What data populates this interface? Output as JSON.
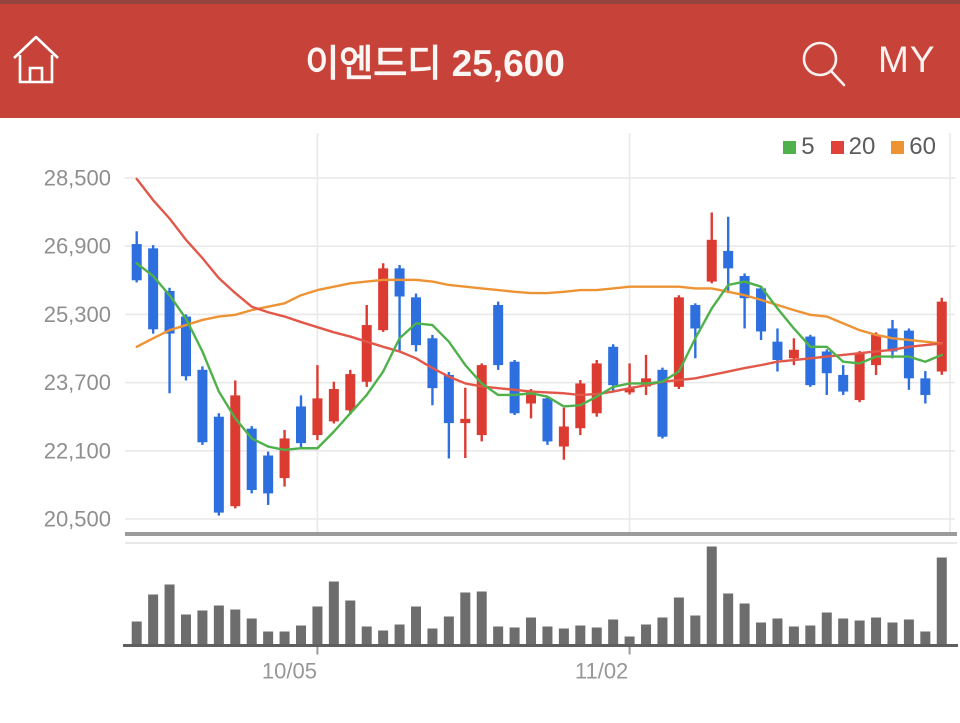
{
  "header": {
    "title": "이엔드디 25,600",
    "stock_name": "이엔드디",
    "current_price": "25,600",
    "my_label": "MY",
    "background": "#c7433a"
  },
  "legend": [
    {
      "label": "5",
      "color": "#4fb14a",
      "series": "ma5"
    },
    {
      "label": "20",
      "color": "#e0413a",
      "series": "ma20"
    },
    {
      "label": "60",
      "color": "#ed9334",
      "series": "ma60"
    }
  ],
  "chart_data": {
    "type": "candlestick+volume",
    "title": "이엔드디",
    "ylabel": "",
    "xlabel": "",
    "grid": true,
    "legend_position": "top-right",
    "ylim": [
      20100,
      28900
    ],
    "y_ticks": [
      {
        "label": "28,500",
        "value": 28500
      },
      {
        "label": "26,900",
        "value": 26900
      },
      {
        "label": "25,300",
        "value": 25300
      },
      {
        "label": "23,700",
        "value": 23700
      },
      {
        "label": "22,100",
        "value": 22100
      },
      {
        "label": "20,500",
        "value": 20500
      }
    ],
    "x_gridlines": [
      {
        "label": "10/05",
        "candle_index": 11
      },
      {
        "label": "11/02",
        "candle_index": 30
      },
      {
        "label": "",
        "candle_index": 49.5
      }
    ],
    "candles_format": [
      "open",
      "high",
      "low",
      "close",
      "volume_rel"
    ],
    "candles": [
      [
        26950,
        27250,
        26050,
        26100,
        24
      ],
      [
        26850,
        26925,
        24850,
        24950,
        51
      ],
      [
        25850,
        25925,
        23450,
        24850,
        61
      ],
      [
        25250,
        25300,
        23750,
        23850,
        31
      ],
      [
        24000,
        24080,
        22240,
        22300,
        35
      ],
      [
        22900,
        22980,
        20580,
        20650,
        40
      ],
      [
        20800,
        23750,
        20750,
        23400,
        36
      ],
      [
        22620,
        22680,
        21100,
        21180,
        27
      ],
      [
        21990,
        22080,
        20830,
        21100,
        14
      ],
      [
        21460,
        22590,
        21260,
        22390,
        14
      ],
      [
        23140,
        23400,
        22160,
        22280,
        20
      ],
      [
        22470,
        24110,
        22350,
        23330,
        39
      ],
      [
        22790,
        23720,
        22740,
        23550,
        64
      ],
      [
        23050,
        24000,
        22950,
        23900,
        45
      ],
      [
        23720,
        25520,
        23600,
        25050,
        19
      ],
      [
        24930,
        26500,
        24890,
        26380,
        15
      ],
      [
        26380,
        26460,
        24430,
        25720,
        21
      ],
      [
        25700,
        25790,
        24430,
        24580,
        39
      ],
      [
        24740,
        24820,
        23170,
        23570,
        17
      ],
      [
        23880,
        23950,
        21920,
        22750,
        29
      ],
      [
        22750,
        23580,
        21930,
        22850,
        53
      ],
      [
        22470,
        24150,
        22320,
        24110,
        54
      ],
      [
        25520,
        25600,
        24000,
        24110,
        19
      ],
      [
        24190,
        24230,
        22940,
        22980,
        18
      ],
      [
        23210,
        23550,
        22860,
        23490,
        28
      ],
      [
        23330,
        23390,
        22240,
        22320,
        19
      ],
      [
        22200,
        23110,
        21890,
        22670,
        17
      ],
      [
        22630,
        23760,
        22470,
        23680,
        20
      ],
      [
        22980,
        24230,
        22900,
        24150,
        18
      ],
      [
        24540,
        24600,
        23490,
        23640,
        26
      ],
      [
        23470,
        24150,
        23420,
        23560,
        9
      ],
      [
        23610,
        24350,
        23410,
        23800,
        21
      ],
      [
        24000,
        24050,
        22390,
        22430,
        28
      ],
      [
        23600,
        25750,
        23550,
        25700,
        48
      ],
      [
        25520,
        25560,
        24270,
        24970,
        30
      ],
      [
        26070,
        27690,
        26030,
        27050,
        99
      ],
      [
        26790,
        27590,
        25800,
        26380,
        52
      ],
      [
        26200,
        26260,
        24970,
        25680,
        42
      ],
      [
        25910,
        25970,
        24700,
        24900,
        23
      ],
      [
        24660,
        24970,
        23960,
        24230,
        27
      ],
      [
        24270,
        24740,
        24110,
        24470,
        19
      ],
      [
        24780,
        24820,
        23600,
        23640,
        20
      ],
      [
        24430,
        24480,
        23410,
        23920,
        33
      ],
      [
        23880,
        24110,
        23410,
        23490,
        27
      ],
      [
        23290,
        24440,
        23240,
        24390,
        25
      ],
      [
        24110,
        24880,
        23880,
        24820,
        28
      ],
      [
        24970,
        25170,
        24270,
        24430,
        23
      ],
      [
        24920,
        24970,
        23530,
        23800,
        26
      ],
      [
        23800,
        23970,
        23210,
        23410,
        14
      ],
      [
        23960,
        25690,
        23880,
        25600,
        88
      ]
    ],
    "ma5": [
      26500,
      26200,
      25750,
      25200,
      24430,
      23490,
      22860,
      22390,
      22200,
      22120,
      22160,
      22160,
      22550,
      22980,
      23410,
      23960,
      24740,
      25090,
      25050,
      24660,
      24110,
      23680,
      23410,
      23410,
      23450,
      23370,
      23140,
      23170,
      23370,
      23600,
      23680,
      23680,
      23720,
      23960,
      24740,
      25440,
      25990,
      26070,
      25950,
      25440,
      24970,
      24540,
      24540,
      24190,
      24150,
      24310,
      24310,
      24310,
      24190,
      24350
    ],
    "ma20": [
      28480,
      27980,
      27550,
      27050,
      26620,
      26150,
      25800,
      25480,
      25350,
      25250,
      25120,
      25000,
      24880,
      24780,
      24660,
      24540,
      24430,
      24270,
      24040,
      23840,
      23680,
      23610,
      23570,
      23530,
      23490,
      23470,
      23450,
      23410,
      23430,
      23490,
      23570,
      23640,
      23720,
      23760,
      23800,
      23880,
      23960,
      24040,
      24110,
      24190,
      24230,
      24270,
      24310,
      24350,
      24390,
      24430,
      24470,
      24540,
      24580,
      24620
    ],
    "ma60": [
      24540,
      24740,
      24930,
      25050,
      25170,
      25250,
      25290,
      25400,
      25480,
      25560,
      25750,
      25870,
      25950,
      26030,
      26070,
      26110,
      26110,
      26110,
      26070,
      25990,
      25950,
      25910,
      25870,
      25830,
      25800,
      25800,
      25830,
      25870,
      25870,
      25910,
      25950,
      25950,
      25950,
      25950,
      25910,
      25910,
      25830,
      25750,
      25640,
      25520,
      25400,
      25290,
      25250,
      25090,
      24930,
      24820,
      24740,
      24700,
      24660,
      24620
    ],
    "colors": {
      "candle_up": "#dc3b31",
      "candle_down": "#2d6fdf",
      "ma5": "#4fb14a",
      "ma20": "#e25749",
      "ma60": "#ed9334",
      "volume": "#6d6d6d",
      "grid": "#e9e9e9",
      "axis_text": "#8f8f8f",
      "divider_thick": "#9b9b9b",
      "divider_thin": "#e0e0e0",
      "volume_axis": "#5f5f5f"
    }
  }
}
